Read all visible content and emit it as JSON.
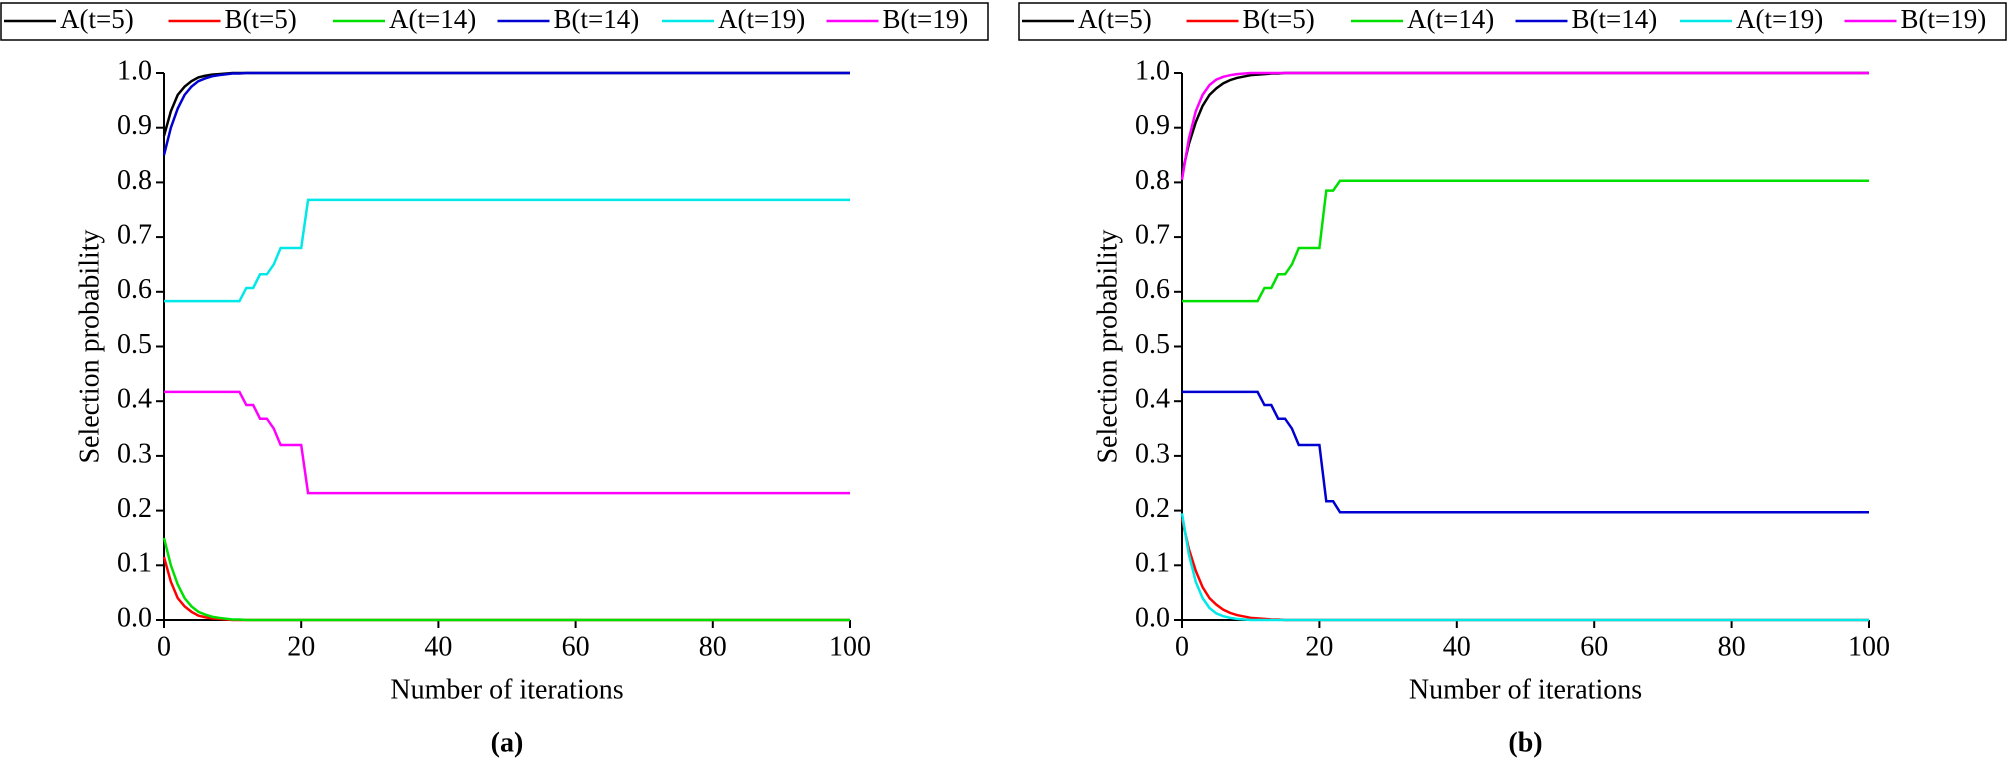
{
  "chart_data": [
    {
      "type": "line",
      "caption": "(a)",
      "x_label": "Number of iterations",
      "y_label": "Selection probability",
      "x": [
        0,
        1,
        2,
        3,
        4,
        5,
        6,
        7,
        8,
        10,
        11,
        12,
        13,
        14,
        15,
        16,
        17,
        18,
        19,
        20,
        21,
        22,
        23,
        25,
        30,
        40,
        50,
        60,
        70,
        80,
        90,
        100
      ],
      "xlim": [
        0,
        100
      ],
      "xticks": [
        0,
        20,
        40,
        60,
        80,
        100
      ],
      "ylim": [
        0,
        1
      ],
      "yticks": [
        {
          "value": 0,
          "label": "0.0"
        },
        0.1,
        0.2,
        0.3,
        0.4,
        0.5,
        0.6,
        0.7,
        0.8,
        0.9,
        {
          "value": 1,
          "label": "1.0"
        }
      ],
      "legend": "top",
      "series": [
        {
          "name": "A(t=5)",
          "color": "#000000",
          "values": [
            0.885,
            0.93,
            0.96,
            0.975,
            0.985,
            0.992,
            0.995,
            0.997,
            0.998,
            1,
            1,
            1,
            1,
            1,
            1,
            1,
            1,
            1,
            1,
            1,
            1,
            1,
            1,
            1,
            1,
            1,
            1,
            1,
            1,
            1,
            1,
            1
          ]
        },
        {
          "name": "B(t=5)",
          "color": "#ff0000",
          "values": [
            0.115,
            0.07,
            0.04,
            0.025,
            0.015,
            0.008,
            0.005,
            0.003,
            0.002,
            0,
            0,
            0,
            0,
            0,
            0,
            0,
            0,
            0,
            0,
            0,
            0,
            0,
            0,
            0,
            0,
            0,
            0,
            0,
            0,
            0,
            0,
            0
          ]
        },
        {
          "name": "A(t=14)",
          "color": "#00e000",
          "values": [
            0.15,
            0.1,
            0.065,
            0.04,
            0.025,
            0.015,
            0.01,
            0.006,
            0.004,
            0.001,
            0.001,
            0,
            0,
            0,
            0,
            0,
            0,
            0,
            0,
            0,
            0,
            0,
            0,
            0,
            0,
            0,
            0,
            0,
            0,
            0,
            0,
            0
          ]
        },
        {
          "name": "B(t=14)",
          "color": "#0000d0",
          "values": [
            0.85,
            0.9,
            0.935,
            0.96,
            0.975,
            0.985,
            0.99,
            0.994,
            0.996,
            0.999,
            0.999,
            1,
            1,
            1,
            1,
            1,
            1,
            1,
            1,
            1,
            1,
            1,
            1,
            1,
            1,
            1,
            1,
            1,
            1,
            1,
            1,
            1
          ]
        },
        {
          "name": "A(t=19)",
          "color": "#00e8e8",
          "values": [
            0.583,
            0.583,
            0.583,
            0.583,
            0.583,
            0.583,
            0.583,
            0.583,
            0.583,
            0.583,
            0.583,
            0.607,
            0.607,
            0.632,
            0.632,
            0.65,
            0.68,
            0.68,
            0.68,
            0.68,
            0.768,
            0.768,
            0.768,
            0.768,
            0.768,
            0.768,
            0.768,
            0.768,
            0.768,
            0.768,
            0.768,
            0.768
          ]
        },
        {
          "name": "B(t=19)",
          "color": "#ff00ff",
          "values": [
            0.417,
            0.417,
            0.417,
            0.417,
            0.417,
            0.417,
            0.417,
            0.417,
            0.417,
            0.417,
            0.417,
            0.393,
            0.393,
            0.368,
            0.368,
            0.35,
            0.32,
            0.32,
            0.32,
            0.32,
            0.232,
            0.232,
            0.232,
            0.232,
            0.232,
            0.232,
            0.232,
            0.232,
            0.232,
            0.232,
            0.232,
            0.232
          ]
        }
      ]
    },
    {
      "type": "line",
      "caption": "(b)",
      "x_label": "Number of iterations",
      "y_label": "Selection probability",
      "x": [
        0,
        1,
        2,
        3,
        4,
        5,
        6,
        7,
        8,
        10,
        11,
        12,
        13,
        14,
        15,
        16,
        17,
        18,
        19,
        20,
        21,
        22,
        23,
        25,
        30,
        40,
        50,
        60,
        70,
        80,
        90,
        100
      ],
      "xlim": [
        0,
        100
      ],
      "xticks": [
        0,
        20,
        40,
        60,
        80,
        100
      ],
      "ylim": [
        0,
        1
      ],
      "yticks": [
        {
          "value": 0,
          "label": "0.0"
        },
        0.1,
        0.2,
        0.3,
        0.4,
        0.5,
        0.6,
        0.7,
        0.8,
        0.9,
        {
          "value": 1,
          "label": "1.0"
        }
      ],
      "legend": "top",
      "series": [
        {
          "name": "A(t=5)",
          "color": "#000000",
          "values": [
            0.815,
            0.87,
            0.91,
            0.94,
            0.96,
            0.972,
            0.981,
            0.987,
            0.991,
            0.996,
            0.997,
            0.998,
            0.999,
            0.999,
            1,
            1,
            1,
            1,
            1,
            1,
            1,
            1,
            1,
            1,
            1,
            1,
            1,
            1,
            1,
            1,
            1,
            1
          ]
        },
        {
          "name": "B(t=5)",
          "color": "#ff0000",
          "values": [
            0.185,
            0.13,
            0.09,
            0.06,
            0.04,
            0.028,
            0.019,
            0.013,
            0.009,
            0.004,
            0.003,
            0.002,
            0.001,
            0.001,
            0,
            0,
            0,
            0,
            0,
            0,
            0,
            0,
            0,
            0,
            0,
            0,
            0,
            0,
            0,
            0,
            0,
            0
          ]
        },
        {
          "name": "A(t=14)",
          "color": "#00e000",
          "values": [
            0.583,
            0.583,
            0.583,
            0.583,
            0.583,
            0.583,
            0.583,
            0.583,
            0.583,
            0.583,
            0.583,
            0.607,
            0.607,
            0.632,
            0.632,
            0.65,
            0.68,
            0.68,
            0.68,
            0.68,
            0.785,
            0.785,
            0.803,
            0.803,
            0.803,
            0.803,
            0.803,
            0.803,
            0.803,
            0.803,
            0.803,
            0.803
          ]
        },
        {
          "name": "B(t=14)",
          "color": "#0000d0",
          "values": [
            0.417,
            0.417,
            0.417,
            0.417,
            0.417,
            0.417,
            0.417,
            0.417,
            0.417,
            0.417,
            0.417,
            0.393,
            0.393,
            0.368,
            0.368,
            0.35,
            0.32,
            0.32,
            0.32,
            0.32,
            0.217,
            0.217,
            0.197,
            0.197,
            0.197,
            0.197,
            0.197,
            0.197,
            0.197,
            0.197,
            0.197,
            0.197
          ]
        },
        {
          "name": "A(t=19)",
          "color": "#00e8e8",
          "values": [
            0.195,
            0.12,
            0.07,
            0.04,
            0.022,
            0.012,
            0.007,
            0.004,
            0.002,
            0,
            0,
            0,
            0,
            0,
            0,
            0,
            0,
            0,
            0,
            0,
            0,
            0,
            0,
            0,
            0,
            0,
            0,
            0,
            0,
            0,
            0,
            0
          ]
        },
        {
          "name": "B(t=19)",
          "color": "#ff00ff",
          "values": [
            0.805,
            0.88,
            0.93,
            0.96,
            0.978,
            0.988,
            0.993,
            0.996,
            0.998,
            1,
            1,
            1,
            1,
            1,
            1,
            1,
            1,
            1,
            1,
            1,
            1,
            1,
            1,
            1,
            1,
            1,
            1,
            1,
            1,
            1,
            1,
            1
          ]
        }
      ]
    }
  ]
}
